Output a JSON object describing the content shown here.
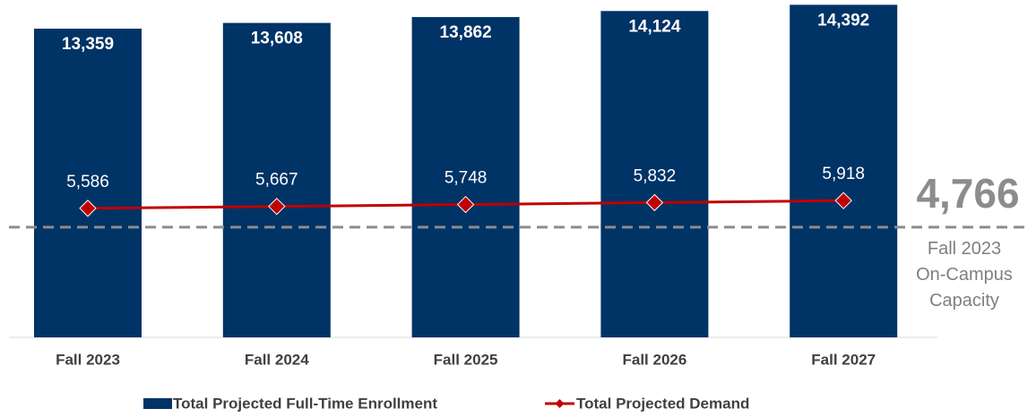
{
  "chart_data": {
    "type": "bar",
    "categories": [
      "Fall 2023",
      "Fall 2024",
      "Fall 2025",
      "Fall 2026",
      "Fall 2027"
    ],
    "series": [
      {
        "name": "Total Projected Full-Time Enrollment",
        "type": "bar",
        "color": "#003366",
        "values": [
          13359,
          13608,
          13862,
          14124,
          14392
        ],
        "value_labels": [
          "13,359",
          "13,608",
          "13,862",
          "14,124",
          "14,392"
        ]
      },
      {
        "name": "Total Projected Demand",
        "type": "line",
        "color": "#c00000",
        "values": [
          5586,
          5667,
          5748,
          5832,
          5918
        ],
        "value_labels": [
          "5,586",
          "5,667",
          "5,748",
          "5,832",
          "5,918"
        ]
      }
    ],
    "ylim": [
      0,
      14600
    ],
    "reference_line": {
      "value": 4766,
      "label": "4,766",
      "color": "#8c8c8c",
      "text": [
        "Fall 2023",
        "On-Campus",
        "Capacity"
      ]
    },
    "legend": "bottom"
  }
}
